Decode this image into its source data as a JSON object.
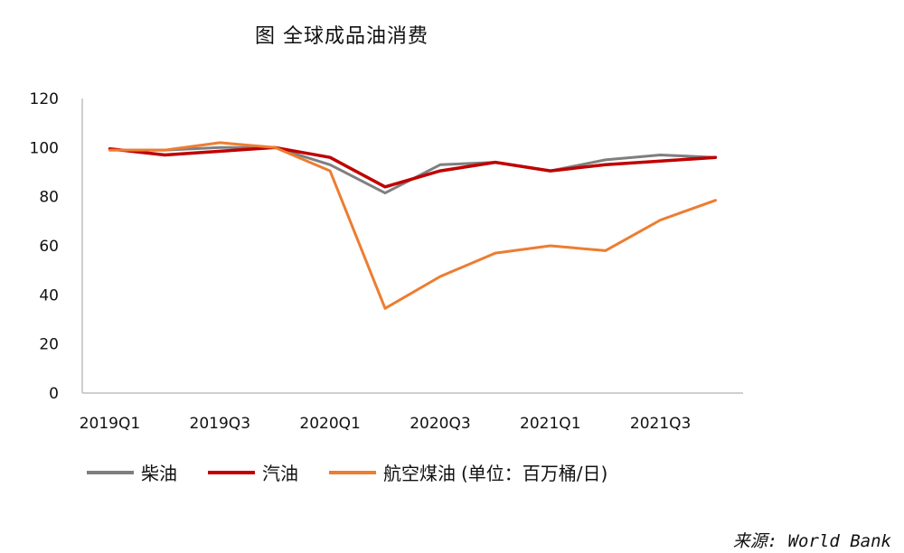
{
  "title": "图  全球成品油消费",
  "legend_note": "(单位：百万桶/日)",
  "source": "来源: World Bank",
  "chart_data": {
    "type": "line",
    "title": "图  全球成品油消费",
    "xlabel": "",
    "ylabel": "",
    "ylim": [
      0,
      120
    ],
    "yticks": [
      0,
      20,
      40,
      60,
      80,
      100,
      120
    ],
    "grid": false,
    "legend_position": "bottom",
    "x": [
      "2019Q1",
      "2019Q2",
      "2019Q3",
      "2019Q4",
      "2020Q1",
      "2020Q2",
      "2020Q3",
      "2020Q4",
      "2021Q1",
      "2021Q2",
      "2021Q3",
      "2021Q4"
    ],
    "xtick_labels": [
      "2019Q1",
      "2019Q3",
      "2020Q1",
      "2020Q3",
      "2021Q1",
      "2021Q3"
    ],
    "series": [
      {
        "name": "柴油",
        "color": "#7f7f7f",
        "values": [
          99,
          99,
          100,
          100,
          93,
          81.5,
          93,
          94,
          90.5,
          95,
          97,
          96
        ]
      },
      {
        "name": "汽油",
        "color": "#c00000",
        "values": [
          99.5,
          97,
          98.5,
          100,
          96,
          84,
          90.5,
          94,
          90.5,
          93,
          94.5,
          96
        ]
      },
      {
        "name": "航空煤油",
        "color": "#ed7d31",
        "values": [
          99,
          99,
          102,
          100,
          90.5,
          34.5,
          47.5,
          57,
          60,
          58,
          70.5,
          78.5
        ]
      }
    ]
  }
}
